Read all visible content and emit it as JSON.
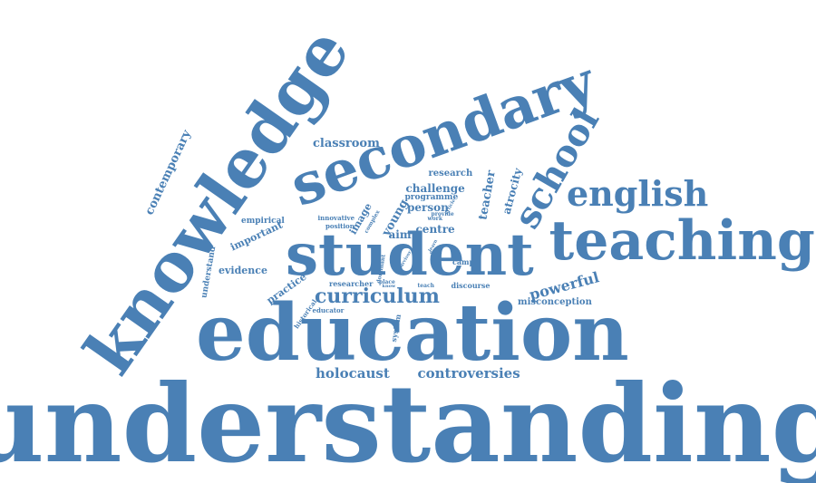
{
  "color": "#4a80b5",
  "words": [
    {
      "id": "understanding",
      "text": "understanding"
    },
    {
      "id": "education",
      "text": "education"
    },
    {
      "id": "student",
      "text": "student"
    },
    {
      "id": "knowledge",
      "text": "knowledge"
    },
    {
      "id": "secondary",
      "text": "secondary"
    },
    {
      "id": "teaching",
      "text": "teaching"
    },
    {
      "id": "school",
      "text": "school"
    },
    {
      "id": "english",
      "text": "english"
    },
    {
      "id": "curriculum",
      "text": "curriculum"
    },
    {
      "id": "holocaust",
      "text": "holocaust"
    },
    {
      "id": "controversies",
      "text": "controversies"
    },
    {
      "id": "powerful",
      "text": "powerful"
    },
    {
      "id": "classroom",
      "text": "classroom"
    },
    {
      "id": "contemporary",
      "text": "contemporary"
    },
    {
      "id": "challenge",
      "text": "challenge"
    },
    {
      "id": "person",
      "text": "person"
    },
    {
      "id": "centre",
      "text": "centre"
    },
    {
      "id": "teacher",
      "text": "teacher"
    },
    {
      "id": "atrocity",
      "text": "atrocity"
    },
    {
      "id": "young",
      "text": "young"
    },
    {
      "id": "image",
      "text": "image"
    },
    {
      "id": "research",
      "text": "research"
    },
    {
      "id": "aim",
      "text": "aim"
    },
    {
      "id": "important",
      "text": "important"
    },
    {
      "id": "evidence",
      "text": "evidence"
    },
    {
      "id": "practice",
      "text": "practice"
    },
    {
      "id": "empirical",
      "text": "empirical"
    },
    {
      "id": "understand",
      "text": "understand"
    },
    {
      "id": "misconception",
      "text": "misconception"
    },
    {
      "id": "innovative",
      "text": "innovative"
    },
    {
      "id": "position",
      "text": "position"
    },
    {
      "id": "complex",
      "text": "complex"
    },
    {
      "id": "programme",
      "text": "programme"
    },
    {
      "id": "camp",
      "text": "camp"
    },
    {
      "id": "discourse",
      "text": "discourse"
    },
    {
      "id": "system",
      "text": "system"
    },
    {
      "id": "researcher",
      "text": "researcher"
    },
    {
      "id": "historical",
      "text": "historical"
    },
    {
      "id": "educator",
      "text": "educator"
    },
    {
      "id": "place",
      "text": "place"
    },
    {
      "id": "teach",
      "text": "teach"
    },
    {
      "id": "work",
      "text": "work"
    },
    {
      "id": "provide",
      "text": "provide"
    },
    {
      "id": "article",
      "text": "article"
    },
    {
      "id": "learn",
      "text": "learn"
    },
    {
      "id": "need",
      "text": "need"
    },
    {
      "id": "know",
      "text": "know"
    },
    {
      "id": "dominant",
      "text": "dominant"
    },
    {
      "id": "survivor",
      "text": "survivor"
    }
  ]
}
